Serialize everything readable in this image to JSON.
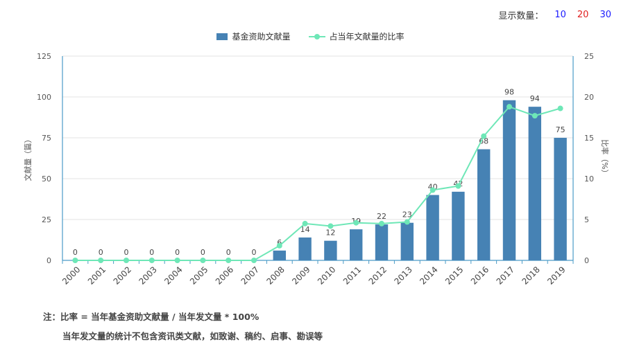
{
  "display_count": {
    "label": "显示数量：",
    "options": [
      {
        "label": "10",
        "color": "#1a1aff"
      },
      {
        "label": "20",
        "color": "#e02020"
      },
      {
        "label": "30",
        "color": "#1a1aff"
      }
    ]
  },
  "notes": {
    "line1": "注：比率 = 当年基金资助文献量 / 当年发文量 * 100%",
    "line2": "当年发文量的统计不包含资讯类文献，如致谢、稿约、启事、勘误等"
  },
  "chart_data": {
    "type": "bar",
    "categories": [
      "2000",
      "2001",
      "2002",
      "2003",
      "2004",
      "2005",
      "2006",
      "2007",
      "2008",
      "2009",
      "2010",
      "2011",
      "2012",
      "2013",
      "2014",
      "2015",
      "2016",
      "2017",
      "2018",
      "2019"
    ],
    "series": [
      {
        "name": "基金资助文献量",
        "type": "bar",
        "axis": "left",
        "color": "#4682b4",
        "values": [
          0,
          0,
          0,
          0,
          0,
          0,
          0,
          0,
          6,
          14,
          12,
          19,
          22,
          23,
          40,
          42,
          68,
          98,
          94,
          75
        ]
      },
      {
        "name": "占当年文献量的比率",
        "type": "line",
        "axis": "right",
        "color": "#6ee7b7",
        "values": [
          0,
          0,
          0,
          0,
          0,
          0,
          0,
          0,
          1.8,
          4.5,
          4.2,
          4.6,
          4.5,
          4.7,
          8.6,
          9.1,
          15.2,
          18.8,
          17.7,
          18.6
        ]
      }
    ],
    "ylabel": "文献量（篇）",
    "ylabel_right": "比率（%）",
    "ylim": [
      0,
      125
    ],
    "yticks": [
      0,
      25,
      50,
      75,
      100,
      125
    ],
    "ylim_right": [
      0,
      25
    ],
    "yticks_right": [
      0,
      5,
      10,
      15,
      20,
      25
    ],
    "grid": true,
    "legend": "top-center"
  }
}
